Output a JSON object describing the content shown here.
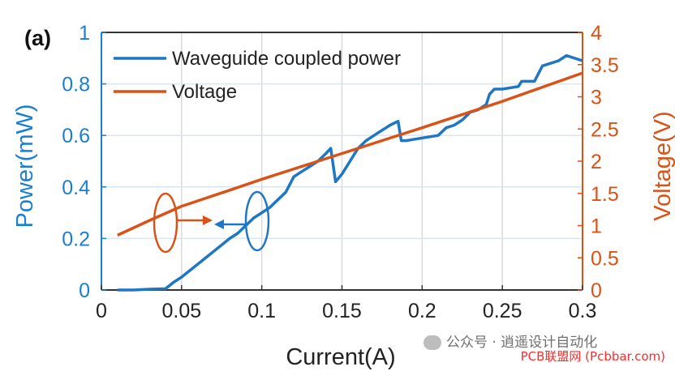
{
  "chart_data": {
    "type": "line",
    "panel_label": "(a)",
    "xlabel": "Current(A)",
    "ylabel_left": "Power(mW)",
    "ylabel_right": "Voltage(V)",
    "xlim": [
      0,
      0.3
    ],
    "ylim_left": [
      0,
      1
    ],
    "ylim_right": [
      0,
      4
    ],
    "x_ticks": [
      "0",
      "0.05",
      "0.1",
      "0.15",
      "0.2",
      "0.25",
      "0.3"
    ],
    "y_left_ticks": [
      "0",
      "0.2",
      "0.4",
      "0.6",
      "0.8",
      "1"
    ],
    "y_right_ticks": [
      "0",
      "0.5",
      "1",
      "1.5",
      "2",
      "2.5",
      "3",
      "3.5",
      "4"
    ],
    "grid": "vertical and horizontal",
    "legend_placement": "top-left",
    "colors": {
      "power": "#1f77c4",
      "voltage": "#d95319",
      "axis_left": "#1a7fd0",
      "axis_right": "#d95319"
    },
    "series": [
      {
        "name": "Waveguide coupled power",
        "axis": "left",
        "x": [
          0.01,
          0.02,
          0.03,
          0.04,
          0.045,
          0.05,
          0.055,
          0.06,
          0.065,
          0.07,
          0.075,
          0.08,
          0.085,
          0.09,
          0.095,
          0.1,
          0.105,
          0.11,
          0.115,
          0.12,
          0.125,
          0.13,
          0.135,
          0.14,
          0.143,
          0.146,
          0.15,
          0.155,
          0.16,
          0.165,
          0.17,
          0.175,
          0.18,
          0.185,
          0.187,
          0.19,
          0.2,
          0.21,
          0.215,
          0.22,
          0.225,
          0.23,
          0.235,
          0.24,
          0.242,
          0.245,
          0.25,
          0.26,
          0.262,
          0.27,
          0.275,
          0.28,
          0.285,
          0.29,
          0.3
        ],
        "values": [
          0.0,
          0.0,
          0.003,
          0.005,
          0.03,
          0.05,
          0.075,
          0.1,
          0.125,
          0.15,
          0.175,
          0.2,
          0.22,
          0.25,
          0.28,
          0.3,
          0.32,
          0.35,
          0.38,
          0.44,
          0.46,
          0.48,
          0.5,
          0.53,
          0.55,
          0.42,
          0.45,
          0.5,
          0.55,
          0.58,
          0.6,
          0.62,
          0.64,
          0.655,
          0.58,
          0.58,
          0.59,
          0.6,
          0.63,
          0.64,
          0.66,
          0.69,
          0.7,
          0.72,
          0.76,
          0.78,
          0.78,
          0.79,
          0.81,
          0.81,
          0.87,
          0.88,
          0.89,
          0.91,
          0.89
        ]
      },
      {
        "name": "Voltage",
        "axis": "right",
        "x": [
          0.01,
          0.03,
          0.05,
          0.08,
          0.1,
          0.15,
          0.2,
          0.25,
          0.3
        ],
        "values": [
          0.85,
          1.08,
          1.3,
          1.55,
          1.72,
          2.12,
          2.52,
          2.93,
          3.37
        ]
      }
    ]
  },
  "watermark": "PCB联盟网 (Pcbbar.com)",
  "wechat_text": "公众号 · 逍遥设计自动化"
}
